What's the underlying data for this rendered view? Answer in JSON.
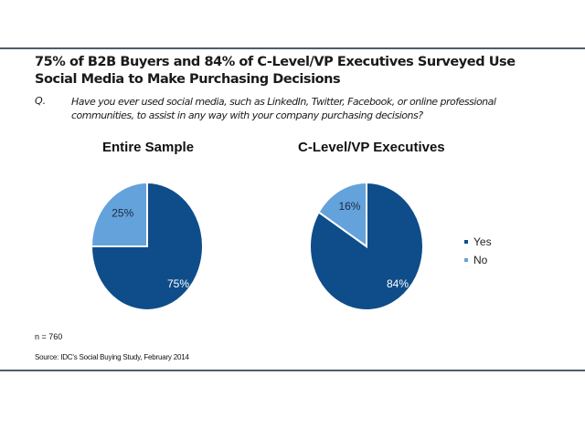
{
  "title_line1": "75% of B2B Buyers and 84% of C-Level/VP Executives Surveyed Use",
  "title_line2": "Social Media to Make Purchasing Decisions",
  "question_label": "Q.",
  "question_line1": "Have you ever used social media, such as LinkedIn, Twitter, Facebook, or online professional",
  "question_line2": "communities, to assist in any way with your company purchasing decisions?",
  "note": "n = 760",
  "source": "Source: IDC's Social Buying Study, February 2014",
  "colors": {
    "yes": "#0e4d8a",
    "no": "#64a2db"
  },
  "chart_data": [
    {
      "type": "pie",
      "title": "Entire Sample",
      "categories": [
        "Yes",
        "No"
      ],
      "values": [
        75,
        25
      ],
      "labels": [
        "75%",
        "25%"
      ],
      "legend": "none"
    },
    {
      "type": "pie",
      "title": "C-Level/VP Executives",
      "categories": [
        "Yes",
        "No"
      ],
      "values": [
        84,
        16
      ],
      "labels": [
        "84%",
        "16%"
      ],
      "legend": "right"
    }
  ],
  "legend": [
    {
      "label": "Yes",
      "color": "#0e4d8a"
    },
    {
      "label": "No",
      "color": "#64a2db"
    }
  ]
}
